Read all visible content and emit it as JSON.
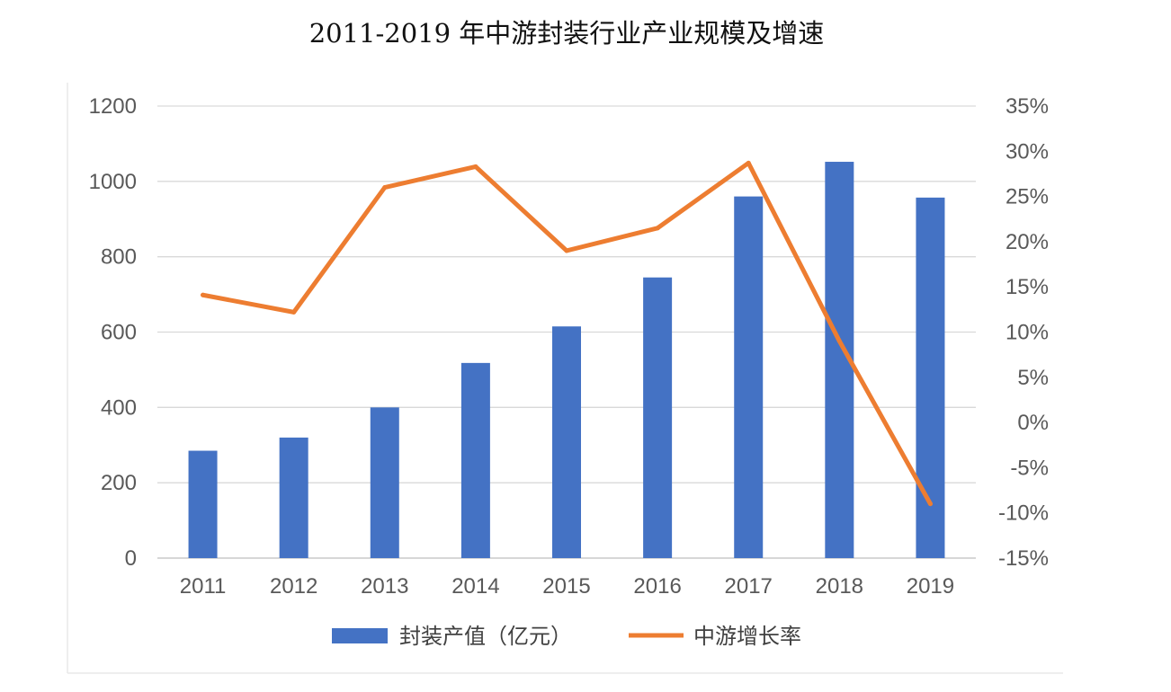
{
  "chart_data": {
    "type": "bar",
    "title": "2011-2019 年中游封装行业产业规模及增速",
    "categories": [
      "2011",
      "2012",
      "2013",
      "2014",
      "2015",
      "2016",
      "2017",
      "2018",
      "2019"
    ],
    "series": [
      {
        "name": "封装产值（亿元）",
        "type": "bar",
        "axis": "left",
        "color": "#4472C4",
        "values": [
          285,
          320,
          400,
          518,
          615,
          745,
          960,
          1052,
          957
        ]
      },
      {
        "name": "中游增长率",
        "type": "line",
        "axis": "right",
        "color": "#ED7D31",
        "values": [
          14.1,
          12.2,
          26.0,
          28.3,
          19.0,
          21.5,
          28.7,
          9.0,
          -9.0
        ]
      }
    ],
    "y_left": {
      "min": 0,
      "max": 1200,
      "ticks": [
        "0",
        "200",
        "400",
        "600",
        "800",
        "1000",
        "1200"
      ]
    },
    "y_right": {
      "min": -15,
      "max": 35,
      "ticks": [
        "-15%",
        "-10%",
        "-5%",
        "0%",
        "5%",
        "10%",
        "15%",
        "20%",
        "25%",
        "30%",
        "35%"
      ]
    },
    "grid": true,
    "legend": "bottom"
  }
}
